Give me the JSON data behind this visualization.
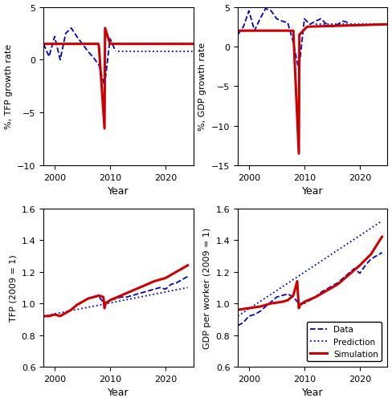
{
  "color_data": "#0000CC",
  "color_pred": "#0000CC",
  "color_sim": "#CC0000",
  "tfp_growth_ylim": [
    -10,
    5
  ],
  "gdp_growth_ylim": [
    -15,
    5
  ],
  "tfp_level_ylim": [
    0.6,
    1.6
  ],
  "gdp_level_ylim": [
    0.6,
    1.6
  ],
  "xlabel": "Year",
  "tfp_growth_ylabel": "%, TFP growth rate",
  "gdp_growth_ylabel": "%, GDP growth rate",
  "tfp_level_ylabel": "TFP (2009 = 1)",
  "gdp_level_ylabel": "GDP per worker (2009 = 1)",
  "legend_data": "Data",
  "legend_pred": "Prediction",
  "legend_sim": "Simulation",
  "xlim": [
    1998,
    2025
  ]
}
